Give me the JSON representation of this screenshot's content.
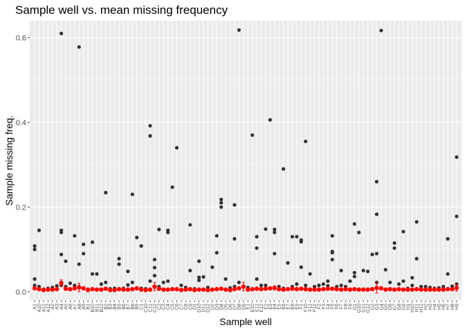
{
  "chart_data": {
    "type": "scatter",
    "title": "Sample well vs. mean missing frequency",
    "xlabel": "Sample well",
    "ylabel": "Sample missing freq.",
    "ylim": [
      -0.02,
      0.64
    ],
    "yticks": [
      0.0,
      0.2,
      0.4,
      0.6
    ],
    "ytick_labels": [
      "0.0",
      "0.2",
      "0.4",
      "0.6"
    ],
    "grid": true,
    "colors": {
      "panel": "#ebebeb",
      "grid": "#ffffff",
      "points": "#333333",
      "mean": "#ff0000"
    },
    "categories": [
      "A1",
      "A10",
      "A11",
      "A12",
      "A2",
      "A3",
      "A4",
      "A5",
      "A6",
      "A7",
      "A8",
      "A9",
      "B1",
      "B10",
      "B11",
      "B12",
      "B2",
      "B3",
      "B4",
      "B5",
      "B6",
      "B7",
      "B8",
      "B9",
      "C1",
      "C10",
      "C11",
      "C12",
      "C2",
      "C3",
      "C4",
      "C5",
      "C6",
      "C7",
      "C8",
      "C9",
      "D1",
      "D10",
      "D11",
      "D12",
      "D2",
      "D3",
      "D4",
      "D5",
      "D6",
      "D7",
      "D8",
      "D9",
      "E1",
      "E10",
      "E11",
      "E12",
      "E2",
      "E3",
      "E4",
      "E5",
      "E6",
      "E7",
      "E8",
      "E9",
      "F1",
      "F10",
      "F11",
      "F12",
      "F2",
      "F3",
      "F4",
      "F5",
      "F6",
      "F7",
      "F8",
      "F9",
      "G1",
      "G10",
      "G11",
      "G12",
      "G2",
      "G3",
      "G4",
      "G5",
      "G6",
      "G7",
      "G8",
      "G9",
      "H1",
      "H10",
      "H11",
      "H12",
      "H2",
      "H3",
      "H4",
      "H5",
      "H6",
      "H7",
      "H8",
      "H9"
    ],
    "x_tick_labels": [
      "A1",
      "A10",
      "A11",
      "A12",
      "A2",
      "A3",
      "A4",
      "A5",
      "A6",
      "A7",
      "A8",
      "A9",
      "B1",
      "B10",
      "B11",
      "B12",
      "B2",
      "B3",
      "B4",
      "B5",
      "B6",
      "B7",
      "B8",
      "B9",
      "C1",
      "C10",
      "C11",
      "C12",
      "C2",
      "C3",
      "C4",
      "C5",
      "C6",
      "C7",
      "C8",
      "C9",
      "D1",
      "D10",
      "D11",
      "D12",
      "D2",
      "D3",
      "D4",
      "D5",
      "D6",
      "D7",
      "D8",
      "D9",
      "E1",
      "E10",
      "E11",
      "E12",
      "E2",
      "E3",
      "E4",
      "E5",
      "E6",
      "E7",
      "E8",
      "E9",
      "F1",
      "F10",
      "F11",
      "F12",
      "F2",
      "F3",
      "F4",
      "F5",
      "F6",
      "F7",
      "F8",
      "F9",
      "G1",
      "G10",
      "G11",
      "G12",
      "G2",
      "G3",
      "G4",
      "G5",
      "G6",
      "G7",
      "G8",
      "G9",
      "H1",
      "H10",
      "H11",
      "H12",
      "H2",
      "H3",
      "H4",
      "H5",
      "H6",
      "H7",
      "H8",
      "H9"
    ],
    "outliers": [
      [
        "A1",
        0.108
      ],
      [
        "A1",
        0.1
      ],
      [
        "A1",
        0.03
      ],
      [
        "A1",
        0.015
      ],
      [
        "A10",
        0.145
      ],
      [
        "A10",
        0.012
      ],
      [
        "A11",
        0.006
      ],
      [
        "A12",
        0.008
      ],
      [
        "A2",
        0.01
      ],
      [
        "A3",
        0.014
      ],
      [
        "A4",
        0.61
      ],
      [
        "A4",
        0.145
      ],
      [
        "A4",
        0.14
      ],
      [
        "A4",
        0.088
      ],
      [
        "A4",
        0.022
      ],
      [
        "A4",
        0.015
      ],
      [
        "A5",
        0.072
      ],
      [
        "A5",
        0.012
      ],
      [
        "A6",
        0.02
      ],
      [
        "A7",
        0.132
      ],
      [
        "A7",
        0.015
      ],
      [
        "A8",
        0.578
      ],
      [
        "A8",
        0.065
      ],
      [
        "A8",
        0.012
      ],
      [
        "A9",
        0.112
      ],
      [
        "A9",
        0.09
      ],
      [
        "B1",
        0.006
      ],
      [
        "B10",
        0.117
      ],
      [
        "B10",
        0.042
      ],
      [
        "B11",
        0.042
      ],
      [
        "B12",
        0.018
      ],
      [
        "B2",
        0.234
      ],
      [
        "B2",
        0.022
      ],
      [
        "B3",
        0.007
      ],
      [
        "B4",
        0.008
      ],
      [
        "B5",
        0.078
      ],
      [
        "B5",
        0.065
      ],
      [
        "B6",
        0.008
      ],
      [
        "B7",
        0.048
      ],
      [
        "B7",
        0.016
      ],
      [
        "B8",
        0.23
      ],
      [
        "B8",
        0.022
      ],
      [
        "B9",
        0.128
      ],
      [
        "C1",
        0.108
      ],
      [
        "C1",
        0.008
      ],
      [
        "C10",
        0.007
      ],
      [
        "C11",
        0.392
      ],
      [
        "C11",
        0.368
      ],
      [
        "C11",
        0.025
      ],
      [
        "C12",
        0.076
      ],
      [
        "C12",
        0.057
      ],
      [
        "C12",
        0.038
      ],
      [
        "C2",
        0.147
      ],
      [
        "C2",
        0.012
      ],
      [
        "C3",
        0.022
      ],
      [
        "C4",
        0.145
      ],
      [
        "C4",
        0.14
      ],
      [
        "C4",
        0.025
      ],
      [
        "C5",
        0.247
      ],
      [
        "C6",
        0.34
      ],
      [
        "C7",
        0.015
      ],
      [
        "C8",
        0.01
      ],
      [
        "C9",
        0.158
      ],
      [
        "C9",
        0.05
      ],
      [
        "D1",
        0.007
      ],
      [
        "D10",
        0.072
      ],
      [
        "D10",
        0.034
      ],
      [
        "D10",
        0.027
      ],
      [
        "D11",
        0.035
      ],
      [
        "D12",
        0.01
      ],
      [
        "D2",
        0.058
      ],
      [
        "D3",
        0.132
      ],
      [
        "D3",
        0.092
      ],
      [
        "D4",
        0.218
      ],
      [
        "D4",
        0.21
      ],
      [
        "D4",
        0.2
      ],
      [
        "D5",
        0.03
      ],
      [
        "D6",
        0.009
      ],
      [
        "D7",
        0.205
      ],
      [
        "D7",
        0.125
      ],
      [
        "D7",
        0.012
      ],
      [
        "D8",
        0.618
      ],
      [
        "D8",
        0.022
      ],
      [
        "D9",
        0.012
      ],
      [
        "E1",
        0.01
      ],
      [
        "E10",
        0.37
      ],
      [
        "E11",
        0.13
      ],
      [
        "E11",
        0.103
      ],
      [
        "E11",
        0.03
      ],
      [
        "E12",
        0.015
      ],
      [
        "E2",
        0.148
      ],
      [
        "E2",
        0.015
      ],
      [
        "E3",
        0.406
      ],
      [
        "E4",
        0.147
      ],
      [
        "E4",
        0.14
      ],
      [
        "E4",
        0.09
      ],
      [
        "E5",
        0.012
      ],
      [
        "E6",
        0.29
      ],
      [
        "E6",
        0.008
      ],
      [
        "E7",
        0.068
      ],
      [
        "E8",
        0.13
      ],
      [
        "E8",
        0.012
      ],
      [
        "E9",
        0.13
      ],
      [
        "E9",
        0.018
      ],
      [
        "F1",
        0.122
      ],
      [
        "F1",
        0.118
      ],
      [
        "F1",
        0.058
      ],
      [
        "F10",
        0.355
      ],
      [
        "F10",
        0.015
      ],
      [
        "F11",
        0.042
      ],
      [
        "F12",
        0.012
      ],
      [
        "F2",
        0.015
      ],
      [
        "F3",
        0.018
      ],
      [
        "F4",
        0.025
      ],
      [
        "F4",
        0.014
      ],
      [
        "F5",
        0.132
      ],
      [
        "F5",
        0.095
      ],
      [
        "F5",
        0.092
      ],
      [
        "F5",
        0.076
      ],
      [
        "F6",
        0.012
      ],
      [
        "F7",
        0.05
      ],
      [
        "F7",
        0.015
      ],
      [
        "F8",
        0.012
      ],
      [
        "F9",
        0.025
      ],
      [
        "G1",
        0.16
      ],
      [
        "G1",
        0.045
      ],
      [
        "G1",
        0.036
      ],
      [
        "G10",
        0.14
      ],
      [
        "G11",
        0.05
      ],
      [
        "G12",
        0.048
      ],
      [
        "G2",
        0.088
      ],
      [
        "G3",
        0.26
      ],
      [
        "G3",
        0.183
      ],
      [
        "G3",
        0.09
      ],
      [
        "G3",
        0.022
      ],
      [
        "G4",
        0.617
      ],
      [
        "G5",
        0.052
      ],
      [
        "G6",
        0.022
      ],
      [
        "G7",
        0.115
      ],
      [
        "G7",
        0.103
      ],
      [
        "G8",
        0.018
      ],
      [
        "G9",
        0.142
      ],
      [
        "G9",
        0.025
      ],
      [
        "H1",
        0.008
      ],
      [
        "H10",
        0.033
      ],
      [
        "H10",
        0.015
      ],
      [
        "H11",
        0.165
      ],
      [
        "H11",
        0.078
      ],
      [
        "H12",
        0.012
      ],
      [
        "H2",
        0.012
      ],
      [
        "H3",
        0.01
      ],
      [
        "H4",
        0.008
      ],
      [
        "H5",
        0.009
      ],
      [
        "H6",
        0.012
      ],
      [
        "H7",
        0.125
      ],
      [
        "H7",
        0.042
      ],
      [
        "H8",
        0.013
      ],
      [
        "H9",
        0.318
      ],
      [
        "H9",
        0.178
      ],
      [
        "H9",
        0.018
      ]
    ],
    "means": [
      0.008,
      0.006,
      0.004,
      0.005,
      0.005,
      0.006,
      0.02,
      0.007,
      0.006,
      0.008,
      0.01,
      0.008,
      0.004,
      0.006,
      0.005,
      0.005,
      0.007,
      0.004,
      0.004,
      0.006,
      0.005,
      0.005,
      0.006,
      0.008,
      0.005,
      0.004,
      0.005,
      0.012,
      0.007,
      0.005,
      0.005,
      0.006,
      0.006,
      0.004,
      0.005,
      0.006,
      0.004,
      0.005,
      0.005,
      0.004,
      0.005,
      0.006,
      0.007,
      0.005,
      0.004,
      0.006,
      0.008,
      0.012,
      0.005,
      0.006,
      0.007,
      0.006,
      0.007,
      0.008,
      0.009,
      0.006,
      0.005,
      0.006,
      0.007,
      0.006,
      0.007,
      0.006,
      0.005,
      0.005,
      0.005,
      0.006,
      0.007,
      0.007,
      0.006,
      0.005,
      0.006,
      0.005,
      0.006,
      0.005,
      0.005,
      0.005,
      0.006,
      0.009,
      0.008,
      0.005,
      0.006,
      0.005,
      0.006,
      0.005,
      0.005,
      0.005,
      0.006,
      0.005,
      0.005,
      0.005,
      0.005,
      0.005,
      0.005,
      0.006,
      0.006,
      0.009
    ],
    "errors": [
      0.003,
      0.002,
      0.001,
      0.002,
      0.002,
      0.002,
      0.008,
      0.002,
      0.002,
      0.003,
      0.01,
      0.003,
      0.001,
      0.003,
      0.002,
      0.002,
      0.003,
      0.001,
      0.001,
      0.002,
      0.002,
      0.002,
      0.002,
      0.003,
      0.002,
      0.001,
      0.002,
      0.01,
      0.002,
      0.002,
      0.002,
      0.002,
      0.002,
      0.001,
      0.002,
      0.002,
      0.001,
      0.002,
      0.002,
      0.001,
      0.002,
      0.002,
      0.003,
      0.002,
      0.001,
      0.002,
      0.003,
      0.01,
      0.002,
      0.002,
      0.004,
      0.002,
      0.003,
      0.003,
      0.005,
      0.002,
      0.002,
      0.002,
      0.003,
      0.002,
      0.003,
      0.002,
      0.002,
      0.002,
      0.002,
      0.002,
      0.003,
      0.003,
      0.002,
      0.002,
      0.002,
      0.002,
      0.002,
      0.002,
      0.002,
      0.002,
      0.002,
      0.012,
      0.003,
      0.002,
      0.002,
      0.002,
      0.002,
      0.002,
      0.002,
      0.002,
      0.002,
      0.002,
      0.002,
      0.002,
      0.002,
      0.002,
      0.002,
      0.002,
      0.002,
      0.008
    ]
  }
}
